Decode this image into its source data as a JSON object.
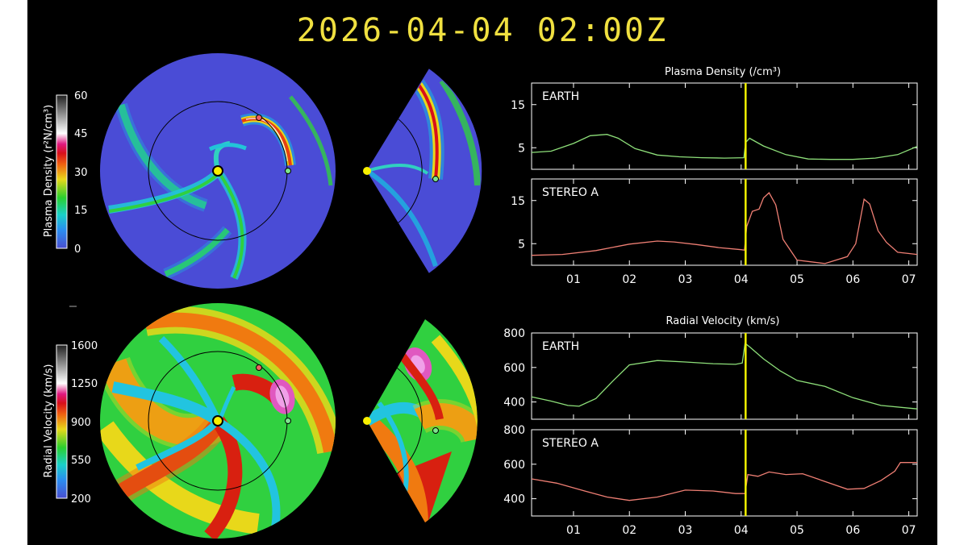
{
  "timestamp": "2026-04-04  02:00Z",
  "colors": {
    "background": "#000000",
    "title": "#f0e040",
    "earth_line": "#8ee07a",
    "stereo_a_line": "#ef7f74",
    "time_marker": "#f0f000",
    "axis": "#ffffff"
  },
  "colorbars": {
    "density": {
      "label": "Plasma Density (r²N/cm³)",
      "ticks": [
        "60",
        "45",
        "30",
        "15",
        "0"
      ]
    },
    "velocity": {
      "label": "Radial Velocity (km/s)",
      "ticks": [
        "1600",
        "1250",
        "900",
        "550",
        "200"
      ]
    }
  },
  "chart_data": [
    {
      "type": "line",
      "title": "Plasma Density (/cm³)",
      "x_tick_labels": [
        "01",
        "02",
        "03",
        "04",
        "05",
        "06",
        "07"
      ],
      "x_range_days": [
        0.25,
        7.15
      ],
      "current_time_day": 4.08,
      "panels": [
        {
          "label": "EARTH",
          "line_color": "#8ee07a",
          "ylim": [
            0,
            20
          ],
          "y_tick_labels": [
            "15",
            "5"
          ],
          "y_ticks": [
            15,
            5
          ],
          "x": [
            0.25,
            0.6,
            1.0,
            1.3,
            1.6,
            1.8,
            2.1,
            2.5,
            2.9,
            3.3,
            3.7,
            4.05,
            4.08,
            4.15,
            4.4,
            4.8,
            5.2,
            5.6,
            6.0,
            6.4,
            6.8,
            7.15
          ],
          "y": [
            3.9,
            4.2,
            6.0,
            7.8,
            8.1,
            7.2,
            4.8,
            3.3,
            2.9,
            2.7,
            2.6,
            2.7,
            6.2,
            7.2,
            5.4,
            3.4,
            2.4,
            2.3,
            2.3,
            2.6,
            3.4,
            5.3
          ]
        },
        {
          "label": "STEREO A",
          "line_color": "#ef7f74",
          "ylim": [
            0,
            20
          ],
          "y_tick_labels": [
            "15",
            "5"
          ],
          "y_ticks": [
            15,
            5
          ],
          "x": [
            0.25,
            0.8,
            1.4,
            2.0,
            2.5,
            2.8,
            3.2,
            3.6,
            4.0,
            4.06,
            4.1,
            4.2,
            4.32,
            4.4,
            4.5,
            4.62,
            4.75,
            5.0,
            5.5,
            5.9,
            6.05,
            6.2,
            6.3,
            6.45,
            6.6,
            6.8,
            7.15
          ],
          "y": [
            2.3,
            2.5,
            3.4,
            4.9,
            5.6,
            5.4,
            4.8,
            4.1,
            3.6,
            3.5,
            9.0,
            12.5,
            13.0,
            15.6,
            16.8,
            14.0,
            6.0,
            1.2,
            0.4,
            2.0,
            5.0,
            15.3,
            14.2,
            8.0,
            5.3,
            3.0,
            2.5
          ]
        }
      ]
    },
    {
      "type": "line",
      "title": "Radial Velocity (km/s)",
      "x_tick_labels": [
        "01",
        "02",
        "03",
        "04",
        "05",
        "06",
        "07"
      ],
      "x_range_days": [
        0.25,
        7.15
      ],
      "current_time_day": 4.08,
      "panels": [
        {
          "label": "EARTH",
          "line_color": "#8ee07a",
          "ylim": [
            300,
            800
          ],
          "y_tick_labels": [
            "800",
            "600",
            "400"
          ],
          "y_ticks": [
            800,
            600,
            400
          ],
          "x": [
            0.25,
            0.6,
            0.9,
            1.1,
            1.4,
            1.7,
            2.0,
            2.5,
            3.0,
            3.5,
            3.9,
            4.02,
            4.07,
            4.15,
            4.4,
            4.7,
            5.0,
            5.5,
            6.0,
            6.5,
            7.15
          ],
          "y": [
            430,
            405,
            380,
            375,
            420,
            520,
            615,
            640,
            632,
            622,
            618,
            626,
            740,
            720,
            650,
            580,
            525,
            490,
            425,
            380,
            360
          ]
        },
        {
          "label": "STEREO A",
          "line_color": "#ef7f74",
          "ylim": [
            300,
            800
          ],
          "y_tick_labels": [
            "800",
            "600",
            "400"
          ],
          "y_ticks": [
            800,
            600,
            400
          ],
          "x": [
            0.25,
            0.7,
            1.2,
            1.6,
            2.0,
            2.5,
            3.0,
            3.5,
            3.9,
            4.07,
            4.12,
            4.3,
            4.5,
            4.8,
            5.1,
            5.5,
            5.9,
            6.2,
            6.5,
            6.75,
            6.85,
            7.15
          ],
          "y": [
            515,
            490,
            445,
            410,
            390,
            410,
            450,
            445,
            430,
            430,
            540,
            530,
            555,
            540,
            545,
            500,
            455,
            460,
            505,
            560,
            610,
            610
          ]
        }
      ]
    }
  ]
}
